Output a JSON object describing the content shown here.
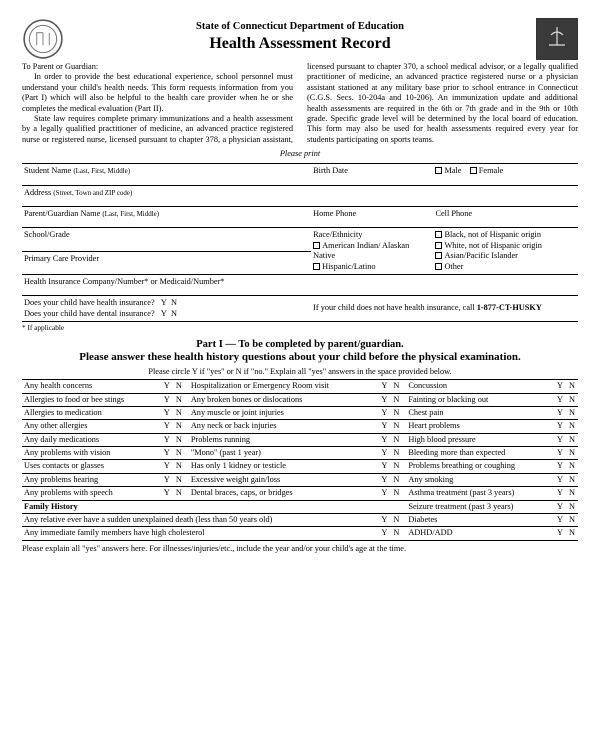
{
  "header": {
    "subtitle": "State of Connecticut Department of Education",
    "title": "Health Assessment Record"
  },
  "intro": {
    "salutation": "To Parent or Guardian:",
    "p1": "In order to provide the best educational experience, school personnel must understand your child's health needs. This form requests information from you (Part I) which will also be helpful to the health care provider when he or she completes the medical evaluation (Part II).",
    "p2": "State law requires complete primary immunizations and a health assessment by a legally qualified practitioner of medicine, an advanced practice registered nurse or registered nurse, licensed pursuant to chapter 378, a physician assistant, licensed pursuant to chapter 370, a school medical advisor, or a legally qualified practitioner of medicine, an advanced practice registered nurse or a physician assistant stationed at any military base prior to school entrance in Connecticut (C.G.S. Secs. 10-204a and 10-206). An immunization update and additional health assessments are required in the 6th or 7th grade and in the 9th or 10th grade. Specific grade level will be determined by the local board of education. This form may also be used for health assessments required every year for students participating on sports teams."
  },
  "please_print": "Please print",
  "form": {
    "student_name": "Student Name",
    "student_name_hint": "(Last, First, Middle)",
    "birth_date": "Birth Date",
    "male": "Male",
    "female": "Female",
    "address": "Address",
    "address_hint": "(Street, Town and ZIP code)",
    "guardian": "Parent/Guardian Name",
    "guardian_hint": "(Last, First, Middle)",
    "home_phone": "Home Phone",
    "cell_phone": "Cell Phone",
    "school_grade": "School/Grade",
    "race": "Race/Ethnicity",
    "race_ai": "American Indian/ Alaskan Native",
    "race_hl": "Hispanic/Latino",
    "race_b": "Black, not of Hispanic origin",
    "race_w": "White, not of Hispanic origin",
    "race_api": "Asian/Pacific Islander",
    "race_o": "Other",
    "pcp": "Primary Care Provider",
    "ins": "Health Insurance Company/Number* or Medicaid/Number*",
    "q_health": "Does your child have health insurance?",
    "q_dental": "Does your child have dental insurance?",
    "y": "Y",
    "n": "N",
    "husky": "If your child does not have health insurance, call 1-877-CT-HUSKY",
    "applicable": "* If applicable"
  },
  "part1": {
    "l1": "Part I — To be completed by parent/guardian.",
    "l2": "Please answer these health history questions about your child before the physical examination.",
    "l3": "Please circle Y if \"yes\" or N if \"no.\" Explain all \"yes\" answers in the space provided below."
  },
  "hh": {
    "col1": [
      "Any health concerns",
      "Allergies to food or bee stings",
      "Allergies to medication",
      "Any other allergies",
      "Any daily medications",
      "Any problems with vision",
      "Uses contacts or glasses",
      "Any problems hearing",
      "Any problems with speech"
    ],
    "col2": [
      "Hospitalization or Emergency Room visit",
      "Any broken bones or dislocations",
      "Any muscle or joint injuries",
      "Any neck or back injuries",
      "Problems running",
      "\"Mono\" (past 1 year)",
      "Has only 1 kidney or testicle",
      "Excessive weight gain/loss",
      "Dental braces, caps, or bridges"
    ],
    "col3": [
      "Concussion",
      "Fainting or blacking out",
      "Chest pain",
      "Heart problems",
      "High blood pressure",
      "Bleeding more than expected",
      "Problems breathing or coughing",
      "Any smoking",
      "Asthma treatment (past 3 years)"
    ],
    "fh_label": "Family History",
    "fh1": "Any relative ever have a sudden unexplained death (less than 50 years old)",
    "fh2": "Any immediate family members have high cholesterol",
    "c3r10": "Seizure treatment (past 3 years)",
    "c3r11": "Diabetes",
    "c3r12": "ADHD/ADD"
  },
  "explain": "Please explain all \"yes\" answers here. For illnesses/injuries/etc., include the year and/or your child's age at the time.",
  "colors": {
    "text": "#000000",
    "bg": "#ffffff",
    "border": "#000000"
  }
}
